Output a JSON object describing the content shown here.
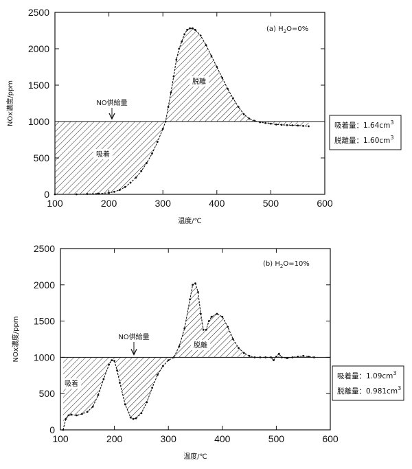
{
  "chart_data": [
    {
      "type": "line",
      "panel_label": "(a) H",
      "panel_sub": "2",
      "panel_tail": "O=0%",
      "xlabel": "温度/℃",
      "ylabel": "NOx濃度/ppm",
      "xlim": [
        100,
        600
      ],
      "ylim": [
        0,
        2500
      ],
      "x_ticks": [
        "100",
        "200",
        "300",
        "400",
        "500",
        "600"
      ],
      "y_ticks": [
        "0",
        "500",
        "1000",
        "1500",
        "2000",
        "2500"
      ],
      "supply_level": 1000,
      "supply_label": "NO供給量",
      "adsorption_label": "吸着",
      "desorption_label": "脱離",
      "box": {
        "line1_label": "吸着量：",
        "line1_value": "1.64cm",
        "line1_exp": "3",
        "line2_label": "脱離量：",
        "line2_value": "1.60cm",
        "line2_exp": "3"
      },
      "series": [
        {
          "x": [
            100,
            140,
            160,
            180,
            200,
            210,
            220,
            230,
            240,
            250,
            260,
            270,
            280,
            290,
            300,
            305,
            310,
            315,
            320,
            325,
            330,
            335,
            340,
            345,
            350,
            355,
            360,
            370,
            380,
            390,
            400,
            410,
            420,
            430,
            440,
            450,
            460,
            470,
            480,
            490,
            500,
            510,
            520,
            530,
            540,
            550,
            560,
            570
          ],
          "y": [
            0,
            0,
            5,
            10,
            20,
            35,
            60,
            100,
            160,
            230,
            320,
            430,
            560,
            720,
            900,
            1000,
            1200,
            1400,
            1620,
            1850,
            2000,
            2100,
            2200,
            2260,
            2280,
            2280,
            2260,
            2180,
            2050,
            1900,
            1750,
            1600,
            1450,
            1320,
            1200,
            1100,
            1040,
            1010,
            990,
            980,
            970,
            960,
            955,
            950,
            948,
            945,
            940,
            935
          ]
        }
      ]
    },
    {
      "type": "line",
      "panel_label": "(b) H",
      "panel_sub": "2",
      "panel_tail": "O=10%",
      "xlabel": "温度/℃",
      "ylabel": "NOx濃度/ppm",
      "xlim": [
        100,
        600
      ],
      "ylim": [
        0,
        2500
      ],
      "x_ticks": [
        "100",
        "200",
        "300",
        "400",
        "500",
        "600"
      ],
      "y_ticks": [
        "0",
        "500",
        "1000",
        "1500",
        "2000",
        "2500"
      ],
      "supply_level": 1000,
      "supply_label": "NO供給量",
      "adsorption_label": "吸着",
      "desorption_label": "脱離",
      "box": {
        "line1_label": "吸着量：",
        "line1_value": "1.09cm",
        "line1_exp": "3",
        "line2_label": "脱離量：",
        "line2_value": "0.981cm",
        "line2_exp": "3"
      },
      "series": [
        {
          "x": [
            105,
            110,
            115,
            120,
            130,
            140,
            150,
            160,
            170,
            180,
            190,
            195,
            200,
            205,
            210,
            220,
            230,
            235,
            240,
            250,
            260,
            270,
            280,
            290,
            300,
            310,
            320,
            330,
            340,
            345,
            350,
            355,
            360,
            365,
            370,
            375,
            380,
            390,
            400,
            410,
            420,
            430,
            440,
            450,
            460,
            470,
            480,
            490,
            495,
            500,
            505,
            510,
            520,
            530,
            540,
            550,
            560,
            570
          ],
          "y": [
            0,
            150,
            200,
            210,
            200,
            220,
            250,
            320,
            480,
            700,
            900,
            960,
            950,
            820,
            650,
            350,
            170,
            150,
            160,
            230,
            380,
            580,
            760,
            880,
            960,
            1000,
            1150,
            1400,
            1800,
            2000,
            2020,
            1900,
            1600,
            1380,
            1380,
            1500,
            1560,
            1600,
            1560,
            1420,
            1250,
            1130,
            1060,
            1020,
            1000,
            1000,
            1000,
            1000,
            960,
            1010,
            1050,
            1000,
            990,
            1000,
            1010,
            1020,
            1010,
            1000
          ]
        }
      ]
    }
  ]
}
